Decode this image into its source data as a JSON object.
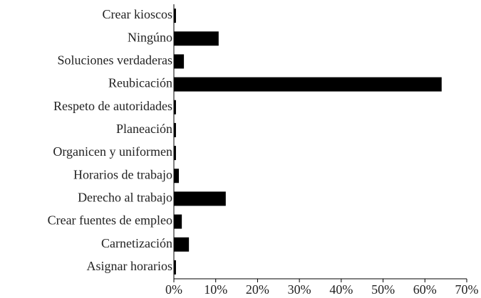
{
  "chart_data": {
    "type": "bar",
    "orientation": "horizontal",
    "categories": [
      "Crear kioscos",
      "Ningúno",
      "Soluciones verdaderas",
      "Reubicación",
      "Respeto de autoridades",
      "Planeación",
      "Organicen y uniformen",
      "Horarios de trabajo",
      "Derecho al trabajo",
      "Crear fuentes de empleo",
      "Carnetización",
      "Asignar horarios"
    ],
    "values": [
      0.5,
      10.7,
      2.4,
      64,
      0.5,
      0.5,
      0.5,
      1.2,
      12.4,
      1.9,
      3.6,
      0.5
    ],
    "color": "#000000",
    "xlim": [
      0,
      70
    ],
    "xticks": [
      {
        "value": 0,
        "label": "0%"
      },
      {
        "value": 10,
        "label": "10%"
      },
      {
        "value": 20,
        "label": "20%"
      },
      {
        "value": 30,
        "label": "30%"
      },
      {
        "value": 40,
        "label": "40%"
      },
      {
        "value": 50,
        "label": "50%"
      },
      {
        "value": 60,
        "label": "60%"
      },
      {
        "value": 70,
        "label": "70%"
      }
    ]
  }
}
